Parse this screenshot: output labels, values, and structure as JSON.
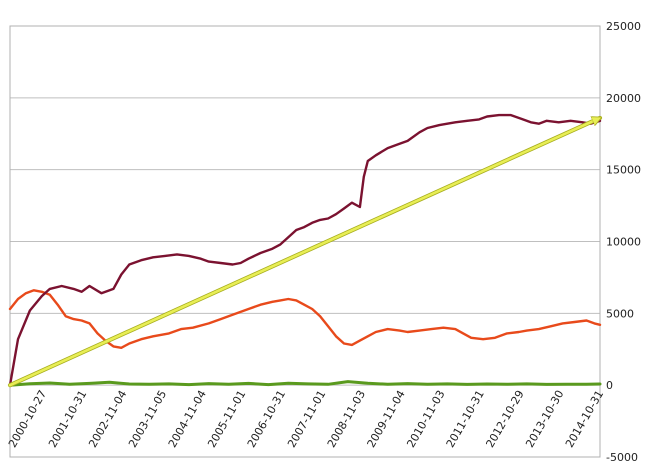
{
  "colors": {
    "grid": "#bfbfbf",
    "frame": "#b0b0b0",
    "series_1": "#7b1230",
    "series_2": "#e84a1b",
    "series_3": "#5a9a1e",
    "arrow": "#e8ee55"
  },
  "chart_data": {
    "type": "line",
    "title": "",
    "xlabel": "",
    "ylabel": "",
    "ylim": [
      -5000,
      25000
    ],
    "yticks": [
      -5000,
      0,
      5000,
      10000,
      15000,
      20000,
      25000
    ],
    "y_axis_side": "right",
    "grid": "horizontal",
    "legend": "none",
    "xlim": [
      2000.0,
      2014.84
    ],
    "xtick_labels": [
      "2000-10-27",
      "2001-10-31",
      "2002-11-04",
      "2003-11-05",
      "2004-11-04",
      "2005-11-01",
      "2006-10-31",
      "2007-11-01",
      "2008-11-03",
      "2009-11-04",
      "2010-11-03",
      "2011-10-31",
      "2012-10-29",
      "2013-10-30",
      "2014-10-31"
    ],
    "xtick_positions": [
      2000.82,
      2001.83,
      2002.84,
      2003.84,
      2004.84,
      2005.83,
      2006.83,
      2007.84,
      2008.84,
      2009.84,
      2010.84,
      2011.83,
      2012.83,
      2013.83,
      2014.83
    ],
    "series": [
      {
        "color": "#7b1230",
        "x": [
          2000.0,
          2000.2,
          2000.5,
          2000.8,
          2001.0,
          2001.3,
          2001.6,
          2001.8,
          2002.0,
          2002.3,
          2002.6,
          2002.8,
          2003.0,
          2003.3,
          2003.6,
          2003.9,
          2004.2,
          2004.5,
          2004.8,
          2005.0,
          2005.3,
          2005.6,
          2005.8,
          2006.0,
          2006.3,
          2006.6,
          2006.8,
          2007.0,
          2007.2,
          2007.4,
          2007.6,
          2007.8,
          2008.0,
          2008.2,
          2008.4,
          2008.6,
          2008.8,
          2008.9,
          2009.0,
          2009.2,
          2009.5,
          2009.8,
          2010.0,
          2010.3,
          2010.5,
          2010.8,
          2011.0,
          2011.2,
          2011.5,
          2011.8,
          2012.0,
          2012.3,
          2012.6,
          2012.9,
          2013.1,
          2013.3,
          2013.5,
          2013.8,
          2014.1,
          2014.4,
          2014.6,
          2014.84
        ],
        "y": [
          0,
          3200,
          5200,
          6200,
          6700,
          6900,
          6700,
          6500,
          6900,
          6400,
          6700,
          7700,
          8400,
          8700,
          8900,
          9000,
          9100,
          9000,
          8800,
          8600,
          8500,
          8400,
          8500,
          8800,
          9200,
          9500,
          9800,
          10300,
          10800,
          11000,
          11300,
          11500,
          11600,
          11900,
          12300,
          12700,
          12400,
          14500,
          15600,
          16000,
          16500,
          16800,
          17000,
          17600,
          17900,
          18100,
          18200,
          18300,
          18400,
          18500,
          18700,
          18800,
          18800,
          18500,
          18300,
          18200,
          18400,
          18300,
          18400,
          18300,
          18200,
          18400
        ]
      },
      {
        "color": "#e84a1b",
        "x": [
          2000.0,
          2000.2,
          2000.4,
          2000.6,
          2000.8,
          2001.0,
          2001.2,
          2001.4,
          2001.6,
          2001.8,
          2002.0,
          2002.2,
          2002.4,
          2002.6,
          2002.8,
          2003.0,
          2003.3,
          2003.6,
          2004.0,
          2004.3,
          2004.6,
          2005.0,
          2005.3,
          2005.6,
          2006.0,
          2006.3,
          2006.6,
          2006.8,
          2007.0,
          2007.2,
          2007.4,
          2007.6,
          2007.8,
          2008.0,
          2008.2,
          2008.4,
          2008.6,
          2008.8,
          2009.0,
          2009.2,
          2009.5,
          2009.8,
          2010.0,
          2010.3,
          2010.6,
          2010.9,
          2011.2,
          2011.4,
          2011.6,
          2011.9,
          2012.2,
          2012.5,
          2012.8,
          2013.0,
          2013.3,
          2013.6,
          2013.9,
          2014.2,
          2014.5,
          2014.7,
          2014.84
        ],
        "y": [
          5300,
          6000,
          6400,
          6600,
          6500,
          6300,
          5600,
          4800,
          4600,
          4500,
          4300,
          3600,
          3100,
          2700,
          2600,
          2900,
          3200,
          3400,
          3600,
          3900,
          4000,
          4300,
          4600,
          4900,
          5300,
          5600,
          5800,
          5900,
          6000,
          5900,
          5600,
          5300,
          4800,
          4100,
          3400,
          2900,
          2800,
          3100,
          3400,
          3700,
          3900,
          3800,
          3700,
          3800,
          3900,
          4000,
          3900,
          3600,
          3300,
          3200,
          3300,
          3600,
          3700,
          3800,
          3900,
          4100,
          4300,
          4400,
          4500,
          4300,
          4200
        ]
      },
      {
        "color": "#5a9a1e",
        "x": [
          2000.0,
          2000.5,
          2001.0,
          2001.5,
          2002.0,
          2002.5,
          2003.0,
          2003.5,
          2004.0,
          2004.5,
          2005.0,
          2005.5,
          2006.0,
          2006.5,
          2007.0,
          2007.5,
          2008.0,
          2008.5,
          2009.0,
          2009.5,
          2010.0,
          2010.5,
          2011.0,
          2011.5,
          2012.0,
          2012.5,
          2013.0,
          2013.5,
          2014.0,
          2014.5,
          2014.84
        ],
        "y": [
          0,
          100,
          150,
          60,
          120,
          200,
          80,
          60,
          90,
          40,
          110,
          60,
          120,
          40,
          140,
          90,
          60,
          250,
          130,
          70,
          110,
          60,
          90,
          50,
          80,
          60,
          90,
          50,
          70,
          60,
          80
        ]
      }
    ],
    "annotations": [
      {
        "type": "arrow",
        "from": [
          2000.0,
          0
        ],
        "to": [
          2014.84,
          18600
        ]
      }
    ]
  }
}
